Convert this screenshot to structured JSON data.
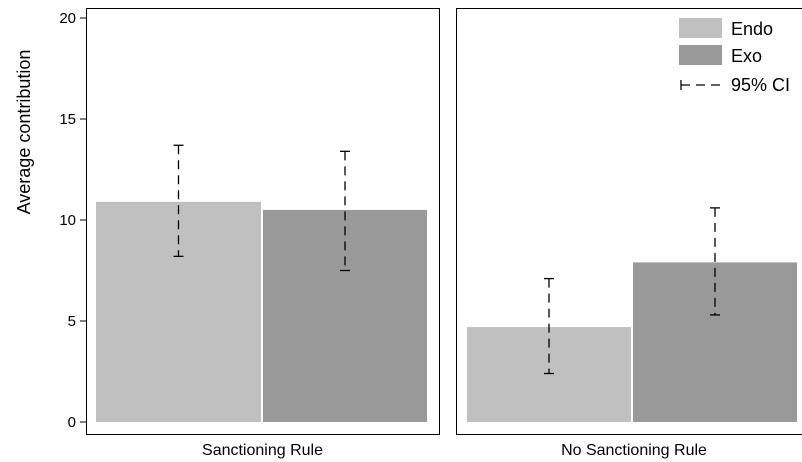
{
  "chart_data": {
    "type": "bar",
    "ylabel": "Average contribution",
    "ylim": [
      0,
      20
    ],
    "yticks": [
      0,
      5,
      10,
      15,
      20
    ],
    "grid": false,
    "legend_position": "top-right",
    "panels": [
      {
        "label": "Sanctioning Rule",
        "bars": [
          {
            "series": "Endo",
            "value": 10.9,
            "ci_low": 8.2,
            "ci_high": 13.7
          },
          {
            "series": "Exo",
            "value": 10.5,
            "ci_low": 7.5,
            "ci_high": 13.4
          }
        ]
      },
      {
        "label": "No Sanctioning Rule",
        "bars": [
          {
            "series": "Endo",
            "value": 4.7,
            "ci_low": 2.4,
            "ci_high": 7.1
          },
          {
            "series": "Exo",
            "value": 7.9,
            "ci_low": 5.3,
            "ci_high": 10.6
          }
        ]
      }
    ],
    "series": [
      {
        "name": "Endo",
        "color": "#c0c0c0"
      },
      {
        "name": "Exo",
        "color": "#999999"
      }
    ],
    "legend": {
      "ci_label": "95% CI"
    }
  }
}
